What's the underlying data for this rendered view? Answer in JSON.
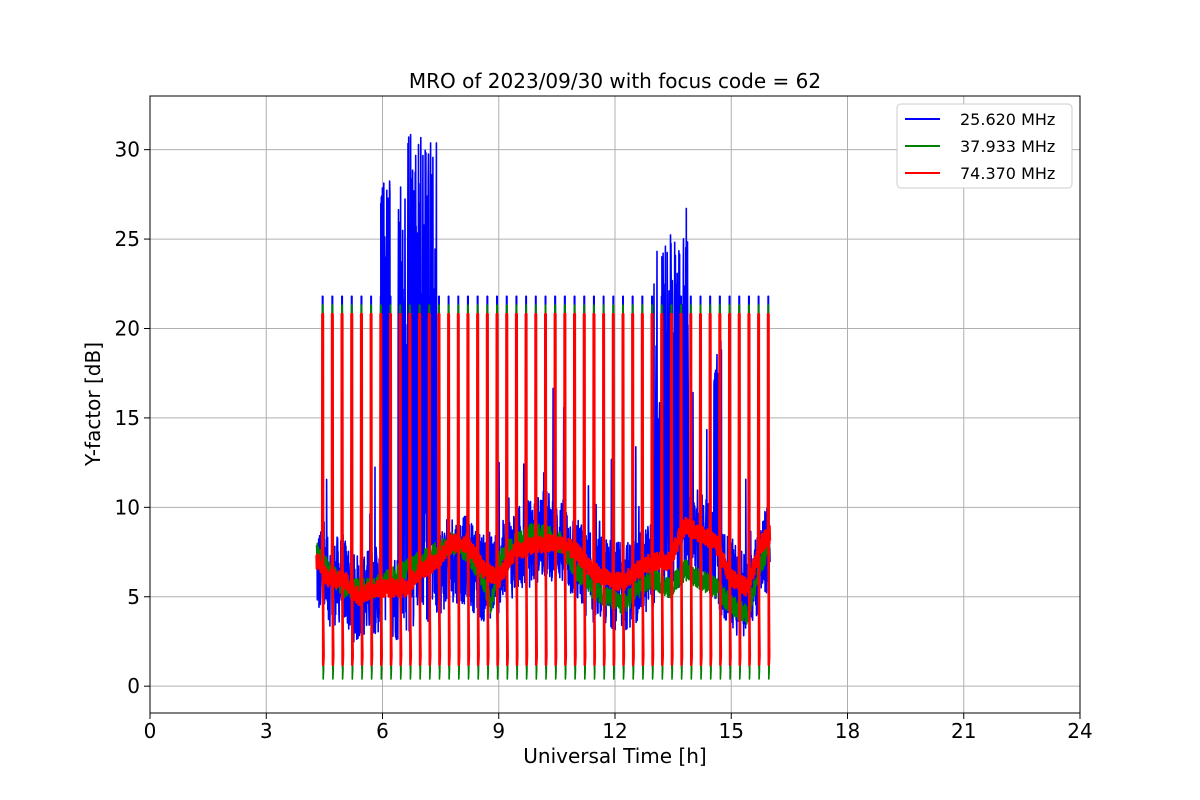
{
  "chart_data": {
    "type": "line",
    "title": "MRO of 2023/09/30 with focus code = 62",
    "xlabel": "Universal Time [h]",
    "ylabel": "Y-factor [dB]",
    "xlim": [
      0,
      24
    ],
    "ylim": [
      -1.5,
      33
    ],
    "x_ticks": [
      0,
      3,
      6,
      9,
      12,
      15,
      18,
      21,
      24
    ],
    "y_ticks": [
      0,
      5,
      10,
      15,
      20,
      25,
      30
    ],
    "grid": true,
    "legend_position": "top-right",
    "calibration_pulses": {
      "start_h": 4.45,
      "end_h": 16.0,
      "interval_h": 0.25,
      "top_db": {
        "blue": 21.8,
        "green": 21.3,
        "red": 20.8
      },
      "bottom_db": {
        "blue": 1.0,
        "green": 0.4,
        "red": 1.2
      }
    },
    "series": [
      {
        "name": "25.620 MHz",
        "color": "#0000ff",
        "baseline": {
          "x": [
            4.3,
            4.6,
            5.0,
            5.3,
            5.6,
            6.0,
            6.4,
            6.8,
            7.2,
            7.5,
            7.8,
            8.2,
            8.6,
            9.0,
            9.4,
            9.8,
            10.2,
            10.6,
            11.0,
            11.4,
            11.8,
            12.2,
            12.6,
            13.0,
            13.4,
            13.8,
            14.2,
            14.6,
            15.0,
            15.4,
            15.8,
            16.0
          ],
          "y": [
            6.5,
            5.8,
            6.0,
            4.8,
            5.2,
            5.5,
            5.0,
            5.5,
            6.0,
            6.5,
            7.2,
            7.0,
            6.0,
            6.5,
            7.5,
            8.0,
            8.5,
            8.2,
            7.0,
            6.0,
            5.8,
            5.5,
            6.0,
            7.0,
            7.0,
            8.0,
            8.5,
            7.0,
            5.5,
            5.0,
            7.0,
            8.0
          ]
        },
        "noise_db": 2.5,
        "spike_regions": [
          {
            "start_h": 5.95,
            "end_h": 6.2,
            "peak_db": 28.6,
            "low_db": 17.0
          },
          {
            "start_h": 6.4,
            "end_h": 7.4,
            "peak_db": 31.3,
            "low_db": 14.5
          },
          {
            "start_h": 13.0,
            "end_h": 13.9,
            "peak_db": 25.3,
            "low_db": 9.0
          },
          {
            "start_h": 14.55,
            "end_h": 14.75,
            "peak_db": 22.6,
            "low_db": 9.0
          }
        ]
      },
      {
        "name": "37.933 MHz",
        "color": "#008000",
        "baseline": {
          "x": [
            4.3,
            4.6,
            5.0,
            5.4,
            5.8,
            6.2,
            6.6,
            7.0,
            7.4,
            7.8,
            8.2,
            8.6,
            8.8,
            9.0,
            9.4,
            9.8,
            10.2,
            10.6,
            11.0,
            11.4,
            11.8,
            12.2,
            12.6,
            13.0,
            13.4,
            13.8,
            14.2,
            14.6,
            15.0,
            15.4,
            15.8,
            16.0
          ],
          "y": [
            7.5,
            6.5,
            5.5,
            5.5,
            5.5,
            6.0,
            6.5,
            7.0,
            7.5,
            8.0,
            7.5,
            6.0,
            4.5,
            7.0,
            8.0,
            8.5,
            8.5,
            8.0,
            6.5,
            5.5,
            5.0,
            4.5,
            5.5,
            6.0,
            5.5,
            6.5,
            6.0,
            5.5,
            4.5,
            4.0,
            7.0,
            8.0
          ]
        },
        "noise_db": 0.6
      },
      {
        "name": "74.370 MHz",
        "color": "#ff0000",
        "baseline": {
          "x": [
            4.3,
            4.6,
            5.0,
            5.4,
            5.8,
            6.2,
            6.6,
            7.0,
            7.4,
            7.8,
            8.2,
            8.6,
            9.0,
            9.4,
            9.8,
            10.2,
            10.6,
            11.0,
            11.4,
            11.8,
            12.2,
            12.6,
            13.0,
            13.4,
            13.8,
            14.2,
            14.6,
            15.0,
            15.4,
            15.8,
            16.0
          ],
          "y": [
            7.0,
            6.0,
            6.0,
            5.0,
            5.5,
            5.5,
            5.5,
            6.5,
            7.0,
            8.0,
            8.0,
            6.5,
            6.0,
            7.5,
            7.8,
            8.0,
            8.0,
            7.5,
            6.5,
            6.0,
            5.8,
            6.5,
            7.0,
            7.0,
            9.0,
            8.5,
            8.0,
            6.0,
            5.5,
            8.0,
            8.5
          ]
        },
        "noise_db": 0.5
      }
    ]
  }
}
